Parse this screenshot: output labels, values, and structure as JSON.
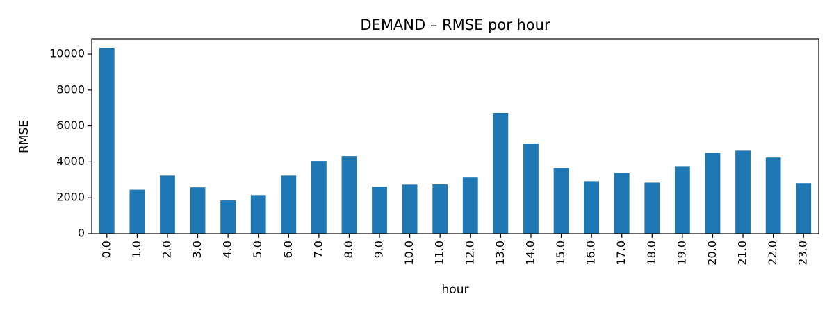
{
  "chart_data": {
    "type": "bar",
    "title": "DEMAND – RMSE por hour",
    "xlabel": "hour",
    "ylabel": "RMSE",
    "categories": [
      "0.0",
      "1.0",
      "2.0",
      "3.0",
      "4.0",
      "5.0",
      "6.0",
      "7.0",
      "8.0",
      "9.0",
      "10.0",
      "11.0",
      "12.0",
      "13.0",
      "14.0",
      "15.0",
      "16.0",
      "17.0",
      "18.0",
      "19.0",
      "20.0",
      "21.0",
      "22.0",
      "23.0"
    ],
    "values": [
      10350,
      2450,
      3230,
      2580,
      1850,
      2150,
      3230,
      4050,
      4320,
      2620,
      2730,
      2740,
      3120,
      6720,
      5020,
      3650,
      2920,
      3380,
      2840,
      3730,
      4500,
      4620,
      4240,
      2810
    ],
    "ylim": [
      0,
      10850
    ],
    "yticks": [
      0,
      2000,
      4000,
      6000,
      8000,
      10000
    ],
    "ytick_labels": [
      "0",
      "2000",
      "4000",
      "6000",
      "8000",
      "10000"
    ],
    "bar_color": "#1f77b4",
    "grid": false,
    "legend": "none"
  }
}
